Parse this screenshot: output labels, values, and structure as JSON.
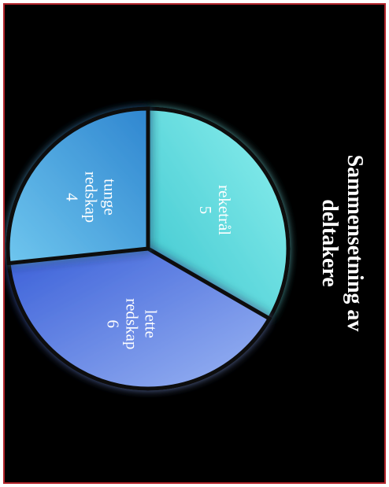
{
  "chart_data": {
    "type": "pie",
    "title": "Sammensetning av deltakere",
    "categories": [
      "reketrål",
      "lette redskap",
      "tunge redskap"
    ],
    "values": [
      5,
      6,
      4
    ],
    "colors": [
      "#5fd6d8",
      "#5b7fdf",
      "#3f98d8"
    ],
    "label_lines": [
      [
        "reketrål",
        "5"
      ],
      [
        "lette",
        "redskap",
        "6"
      ],
      [
        "tunge",
        "redskap",
        "4"
      ]
    ],
    "legend": "none"
  }
}
